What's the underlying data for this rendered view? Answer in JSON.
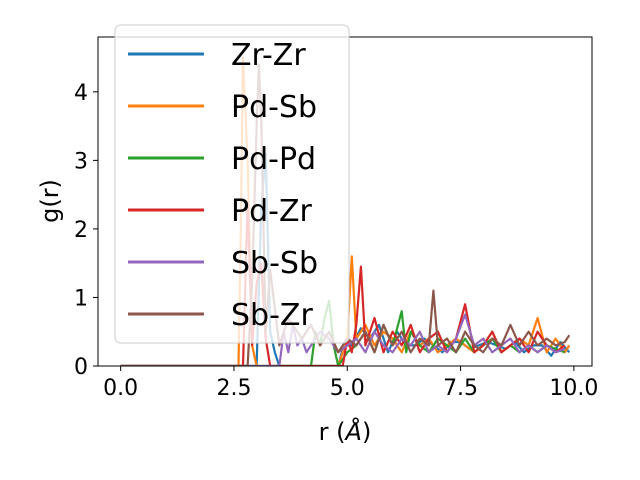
{
  "chart_data": {
    "type": "line",
    "xlabel": "r (",
    "xlabel_unit": "Å",
    "xlabel_close": ")",
    "ylabel": "g(r)",
    "xlim": [
      -0.5,
      10.4
    ],
    "ylim": [
      0,
      4.8
    ],
    "xticks": [
      "0.0",
      "2.5",
      "5.0",
      "7.5",
      "10.0"
    ],
    "xtick_values": [
      0,
      2.5,
      5,
      7.5,
      10
    ],
    "yticks": [
      "0",
      "1",
      "2",
      "3",
      "4"
    ],
    "ytick_values": [
      0,
      1,
      2,
      3,
      4
    ],
    "legend_location": "upper-left",
    "series": [
      {
        "name": "Zr-Zr",
        "color": "#1f77b4",
        "x": [
          0,
          2.5,
          3.0,
          3.1,
          3.2,
          3.3,
          3.4,
          3.5,
          4.8,
          4.9,
          5.0,
          5.1,
          5.3,
          5.5,
          5.7,
          5.9,
          6.1,
          6.3,
          6.5,
          6.7,
          6.9,
          7.1,
          7.3,
          7.5,
          7.7,
          7.9,
          8.1,
          8.3,
          8.5,
          8.7,
          8.9,
          9.1,
          9.3,
          9.5,
          9.7,
          9.9
        ],
        "y": [
          0,
          0,
          0,
          2.3,
          3.1,
          0.5,
          0.2,
          0,
          0,
          0.25,
          0.3,
          0.3,
          0.55,
          0.4,
          0.6,
          0.2,
          0.5,
          0.3,
          0.3,
          0.4,
          0.3,
          0.2,
          0.35,
          0.35,
          0.25,
          0.3,
          0.35,
          0.3,
          0.25,
          0.35,
          0.2,
          0.3,
          0.3,
          0.15,
          0.35,
          0.2
        ]
      },
      {
        "name": "Pd-Sb",
        "color": "#ff7f0e",
        "x": [
          0,
          2.5,
          2.6,
          2.65,
          2.7,
          2.8,
          2.9,
          3.0,
          4.8,
          4.9,
          5.0,
          5.1,
          5.2,
          5.4,
          5.6,
          5.8,
          6.0,
          6.2,
          6.4,
          6.6,
          6.8,
          7.0,
          7.2,
          7.4,
          7.6,
          7.8,
          8.0,
          8.2,
          8.4,
          8.6,
          8.8,
          9.0,
          9.2,
          9.4,
          9.6,
          9.8,
          9.9
        ],
        "y": [
          0,
          0,
          0,
          2.0,
          4.5,
          3.0,
          0.3,
          0,
          0,
          0.2,
          0.4,
          1.6,
          0.4,
          0.6,
          0.3,
          0.5,
          0.4,
          0.2,
          0.5,
          0.3,
          0.4,
          0.2,
          0.3,
          0.4,
          0.3,
          0.2,
          0.3,
          0.5,
          0.2,
          0.3,
          0.4,
          0.3,
          0.7,
          0.2,
          0.4,
          0.2,
          0.3
        ]
      },
      {
        "name": "Pd-Pd",
        "color": "#2ca02c",
        "x": [
          0,
          4.2,
          4.3,
          4.4,
          4.5,
          4.6,
          4.7,
          4.8,
          5.0,
          5.2,
          5.4,
          5.6,
          5.8,
          6.0,
          6.2,
          6.3,
          6.4,
          6.6,
          6.8,
          7.0,
          7.2,
          7.4,
          7.6,
          7.8,
          8.0,
          8.2,
          8.4,
          8.6,
          8.8,
          9.0,
          9.2,
          9.4,
          9.6,
          9.8
        ],
        "y": [
          0,
          0,
          0.5,
          0.3,
          0.7,
          0.95,
          0.3,
          0,
          0.2,
          0.3,
          0.5,
          0.2,
          0.6,
          0.3,
          0.8,
          0.2,
          0.5,
          0.3,
          0.2,
          0.4,
          0.3,
          0.2,
          0.4,
          0.2,
          0.3,
          0.4,
          0.2,
          0.3,
          0.2,
          0.3,
          0.2,
          0.3,
          0.25,
          0.2
        ]
      },
      {
        "name": "Pd-Zr",
        "color": "#d62728",
        "x": [
          0,
          2.7,
          2.8,
          2.9,
          3.0,
          3.1,
          3.2,
          3.3,
          4.9,
          5.0,
          5.1,
          5.2,
          5.3,
          5.4,
          5.6,
          5.8,
          6.0,
          6.2,
          6.4,
          6.6,
          6.8,
          7.0,
          7.2,
          7.4,
          7.6,
          7.8,
          8.0,
          8.2,
          8.4,
          8.6,
          8.8,
          9.0,
          9.2,
          9.4,
          9.6,
          9.8
        ],
        "y": [
          0,
          0,
          2.4,
          0.3,
          1.2,
          1.5,
          0.4,
          0,
          0,
          0.4,
          0.2,
          0.6,
          1.45,
          0.3,
          0.7,
          0.2,
          0.5,
          0.3,
          0.6,
          0.2,
          0.4,
          0.5,
          0.2,
          0.4,
          0.9,
          0.2,
          0.3,
          0.5,
          0.2,
          0.3,
          0.4,
          0.2,
          0.5,
          0.3,
          0.2,
          0.3
        ]
      },
      {
        "name": "Sb-Sb",
        "color": "#9467bd",
        "x": [
          0,
          3.5,
          3.6,
          3.7,
          3.8,
          3.9,
          4.0,
          4.1,
          4.2,
          4.4,
          4.6,
          4.8,
          5.0,
          5.2,
          5.4,
          5.6,
          5.8,
          6.0,
          6.2,
          6.4,
          6.6,
          6.8,
          7.0,
          7.2,
          7.4,
          7.6,
          7.8,
          8.0,
          8.2,
          8.4,
          8.6,
          8.8,
          9.0,
          9.2,
          9.4,
          9.6,
          9.8
        ],
        "y": [
          0,
          0,
          0.5,
          0.2,
          0.6,
          0.3,
          0.4,
          0.2,
          0.3,
          0.5,
          0.4,
          0.2,
          0.3,
          0.4,
          0.2,
          0.5,
          0.3,
          0.2,
          0.4,
          0.3,
          0.5,
          0.2,
          0.3,
          0.2,
          0.4,
          0.75,
          0.3,
          0.4,
          0.2,
          0.3,
          0.4,
          0.2,
          0.3,
          0.2,
          0.3,
          0.2,
          0.25
        ]
      },
      {
        "name": "Sb-Zr",
        "color": "#8c564b",
        "x": [
          0,
          2.8,
          2.9,
          3.0,
          3.05,
          3.1,
          3.2,
          3.3,
          3.5,
          3.7,
          4.0,
          4.2,
          4.4,
          4.6,
          4.8,
          5.0,
          5.2,
          5.4,
          5.6,
          5.8,
          6.0,
          6.2,
          6.4,
          6.6,
          6.8,
          6.9,
          7.0,
          7.2,
          7.4,
          7.6,
          7.8,
          8.0,
          8.2,
          8.4,
          8.6,
          8.8,
          9.0,
          9.2,
          9.4,
          9.6,
          9.8,
          9.9
        ],
        "y": [
          0,
          0,
          1.2,
          3.5,
          4.4,
          3.6,
          0.5,
          1.4,
          0.3,
          0.7,
          0.4,
          0.6,
          0.3,
          0.5,
          0.2,
          0.4,
          0.3,
          0.5,
          0.2,
          0.6,
          0.3,
          0.5,
          0.2,
          0.4,
          0.3,
          1.1,
          0.3,
          0.4,
          0.2,
          0.5,
          0.3,
          0.2,
          0.4,
          0.3,
          0.6,
          0.3,
          0.5,
          0.3,
          0.4,
          0.3,
          0.35,
          0.45
        ]
      }
    ]
  }
}
